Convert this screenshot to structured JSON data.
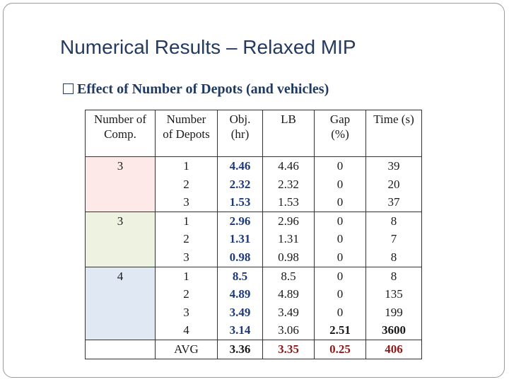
{
  "header": {
    "title": "Numerical Results – Relaxed MIP"
  },
  "bullet": "Effect of Number of Depots (and vehicles)",
  "table": {
    "columns": [
      [
        "Number of",
        "Comp."
      ],
      [
        "Number",
        "of Depots"
      ],
      [
        "Obj.",
        "(hr)"
      ],
      [
        "LB"
      ],
      [
        "Gap",
        "(%)"
      ],
      [
        "Time (s)"
      ]
    ],
    "groups": [
      {
        "comp": "3",
        "color": "#fdeae8",
        "rows": [
          [
            "1",
            "4.46",
            "4.46",
            "0",
            "39"
          ],
          [
            "2",
            "2.32",
            "2.32",
            "0",
            "20"
          ],
          [
            "3",
            "1.53",
            "1.53",
            "0",
            "37"
          ]
        ]
      },
      {
        "comp": "3",
        "color": "#edf3e0",
        "rows": [
          [
            "1",
            "2.96",
            "2.96",
            "0",
            "8"
          ],
          [
            "2",
            "1.31",
            "1.31",
            "0",
            "7"
          ],
          [
            "3",
            "0.98",
            "0.98",
            "0",
            "8"
          ]
        ]
      },
      {
        "comp": "4",
        "color": "#dfe8f3",
        "rows": [
          [
            "1",
            "8.5",
            "8.5",
            "0",
            "8"
          ],
          [
            "2",
            "4.89",
            "4.89",
            "0",
            "135"
          ],
          [
            "3",
            "3.49",
            "3.49",
            "0",
            "199"
          ],
          [
            "4",
            "3.14",
            "3.06",
            "2.51",
            "3600"
          ]
        ]
      }
    ],
    "avg": [
      "AVG",
      "3.36",
      "3.35",
      "0.25",
      "406"
    ]
  }
}
